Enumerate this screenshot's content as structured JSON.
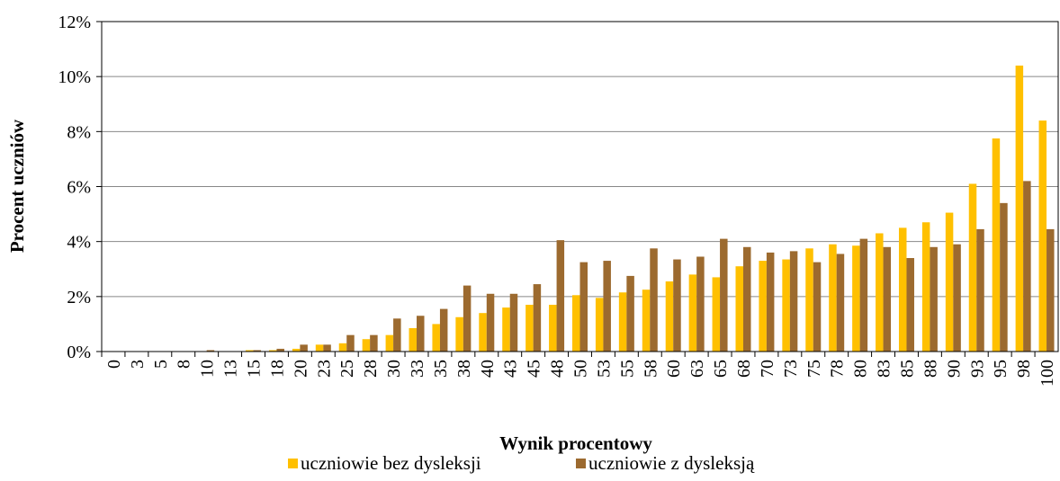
{
  "chart_data": {
    "type": "bar",
    "x_label": "Wynik procentowy",
    "y_label": "Procent uczniów",
    "categories": [
      "0",
      "3",
      "5",
      "8",
      "10",
      "13",
      "15",
      "18",
      "20",
      "23",
      "25",
      "28",
      "30",
      "33",
      "35",
      "38",
      "40",
      "43",
      "45",
      "48",
      "50",
      "53",
      "55",
      "58",
      "60",
      "63",
      "65",
      "68",
      "70",
      "73",
      "75",
      "78",
      "80",
      "83",
      "85",
      "88",
      "90",
      "93",
      "95",
      "98",
      "100"
    ],
    "series": [
      {
        "name": "uczniowie bez dysleksji",
        "color": "#ffc000",
        "values": [
          0,
          0,
          0,
          0,
          0,
          0,
          0.05,
          0.05,
          0.1,
          0.25,
          0.3,
          0.45,
          0.6,
          0.85,
          1.0,
          1.25,
          1.4,
          1.6,
          1.7,
          1.7,
          2.05,
          1.95,
          2.15,
          2.25,
          2.55,
          2.8,
          2.7,
          3.1,
          3.3,
          3.35,
          3.75,
          3.9,
          3.85,
          4.3,
          4.5,
          4.7,
          5.05,
          6.1,
          7.75,
          10.4,
          8.4
        ]
      },
      {
        "name": "uczniowie z dysleksją",
        "color": "#9c6a2f",
        "values": [
          0,
          0,
          0,
          0,
          0.05,
          0,
          0.05,
          0.1,
          0.25,
          0.25,
          0.6,
          0.6,
          1.2,
          1.3,
          1.55,
          2.4,
          2.1,
          2.1,
          2.45,
          4.05,
          3.25,
          3.3,
          2.75,
          3.75,
          3.35,
          3.45,
          4.1,
          3.8,
          3.6,
          3.65,
          3.25,
          3.55,
          4.1,
          3.8,
          3.4,
          3.8,
          3.9,
          4.45,
          5.4,
          6.2,
          4.45
        ]
      }
    ],
    "ylim": [
      0,
      12
    ],
    "yticks": [
      {
        "value": 0,
        "label": "0%"
      },
      {
        "value": 2,
        "label": "2%"
      },
      {
        "value": 4,
        "label": "4%"
      },
      {
        "value": 6,
        "label": "6%"
      },
      {
        "value": 8,
        "label": "8%"
      },
      {
        "value": 10,
        "label": "10%"
      },
      {
        "value": 12,
        "label": "12%"
      }
    ],
    "grid": true,
    "legend": "bottom"
  }
}
